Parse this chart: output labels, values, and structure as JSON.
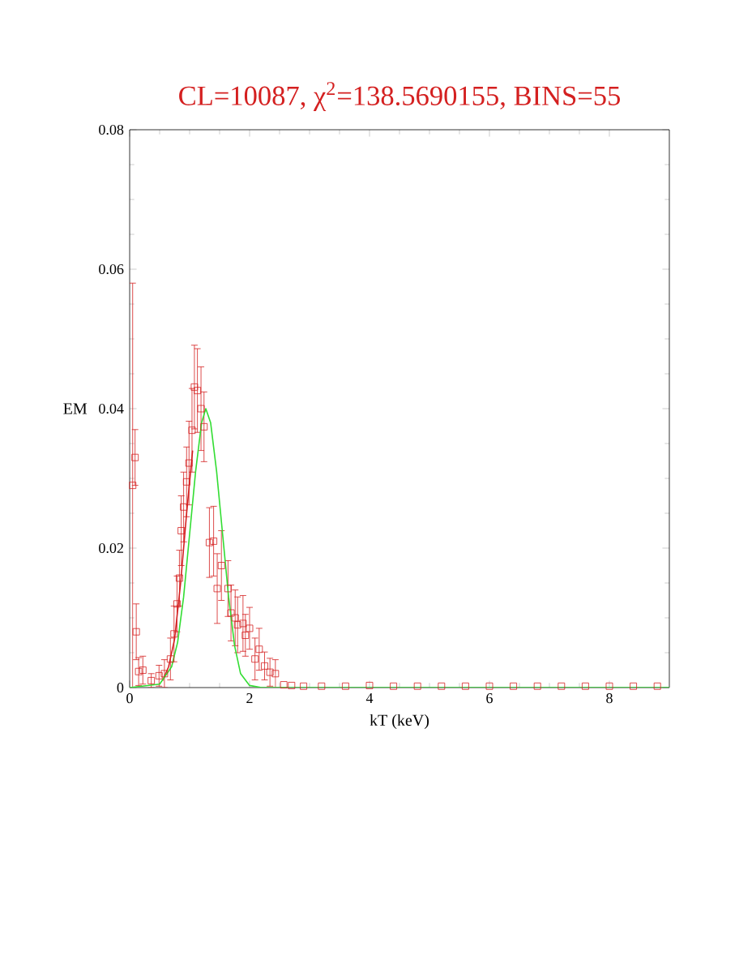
{
  "chart_data": {
    "type": "scatter",
    "title": "CL=10087, χ$^{2}$=138.5690155, BINS=55",
    "xlabel": "kT (keV)",
    "ylabel": "EM",
    "xlim": [
      0,
      9
    ],
    "ylim": [
      0,
      0.08
    ],
    "xticks": [
      0,
      2,
      4,
      6,
      8
    ],
    "yticks": [
      0,
      0.02,
      0.04,
      0.06,
      0.08
    ],
    "grid": false,
    "series": [
      {
        "color": "#d42020",
        "marker": "square",
        "x": [
          0.05,
          0.09,
          0.11,
          0.15,
          0.22,
          0.36,
          0.49,
          0.58,
          0.68,
          0.74,
          0.79,
          0.83,
          0.86,
          0.9,
          0.95,
          0.99,
          1.04,
          1.08,
          1.13,
          1.19,
          1.24,
          1.33,
          1.4,
          1.46,
          1.53,
          1.64,
          1.69,
          1.76,
          1.8,
          1.89,
          1.93,
          2.0,
          2.09,
          2.16,
          2.25,
          2.34,
          2.43,
          2.57,
          2.7,
          2.9,
          3.2,
          3.6,
          4.0,
          4.4,
          4.8,
          5.2,
          5.6,
          6.0,
          6.4,
          6.8,
          7.2,
          7.6,
          8.0,
          8.4,
          8.8
        ],
        "values": [
          0.029,
          0.033,
          0.008,
          0.0023,
          0.0025,
          0.001,
          0.0017,
          0.002,
          0.0041,
          0.0077,
          0.012,
          0.0157,
          0.0225,
          0.0259,
          0.0295,
          0.0322,
          0.0369,
          0.0431,
          0.0426,
          0.04,
          0.0374,
          0.0208,
          0.021,
          0.0142,
          0.0175,
          0.0142,
          0.0107,
          0.01,
          0.009,
          0.0092,
          0.0075,
          0.0085,
          0.0041,
          0.0055,
          0.0031,
          0.0022,
          0.002,
          0.0004,
          0.0003,
          0.0002,
          0.0002,
          0.0002,
          0.0003,
          0.0002,
          0.0002,
          0.0002,
          0.0002,
          0.0002,
          0.0002,
          0.0002,
          0.0002,
          0.0002,
          0.0002,
          0.0002,
          0.0002
        ],
        "errors": [
          0.029,
          0.004,
          0.004,
          0.002,
          0.002,
          0.001,
          0.0015,
          0.002,
          0.003,
          0.004,
          0.004,
          0.004,
          0.005,
          0.005,
          0.005,
          0.006,
          0.006,
          0.006,
          0.006,
          0.006,
          0.005,
          0.005,
          0.005,
          0.005,
          0.005,
          0.004,
          0.004,
          0.004,
          0.004,
          0.004,
          0.003,
          0.003,
          0.003,
          0.003,
          0.002,
          0.002,
          0.002,
          null,
          null,
          null,
          null,
          null,
          null,
          null,
          null,
          null,
          null,
          null,
          null,
          null,
          null,
          null,
          null,
          null,
          null
        ]
      },
      {
        "type": "line",
        "color": "#d42020",
        "marker": "none",
        "x": [
          0.55,
          0.65,
          0.75,
          0.85,
          0.95,
          1.05
        ],
        "values": [
          0.001,
          0.003,
          0.007,
          0.015,
          0.025,
          0.034
        ]
      },
      {
        "type": "line",
        "color": "#33dd33",
        "marker": "none",
        "x": [
          0,
          0.5,
          0.7,
          0.8,
          0.9,
          1.0,
          1.1,
          1.2,
          1.27,
          1.35,
          1.45,
          1.55,
          1.65,
          1.75,
          1.85,
          2.0,
          2.2,
          9
        ],
        "values": [
          0,
          0.0005,
          0.003,
          0.0065,
          0.013,
          0.022,
          0.031,
          0.038,
          0.04,
          0.038,
          0.031,
          0.022,
          0.013,
          0.006,
          0.002,
          0.0003,
          0,
          0
        ]
      }
    ]
  }
}
